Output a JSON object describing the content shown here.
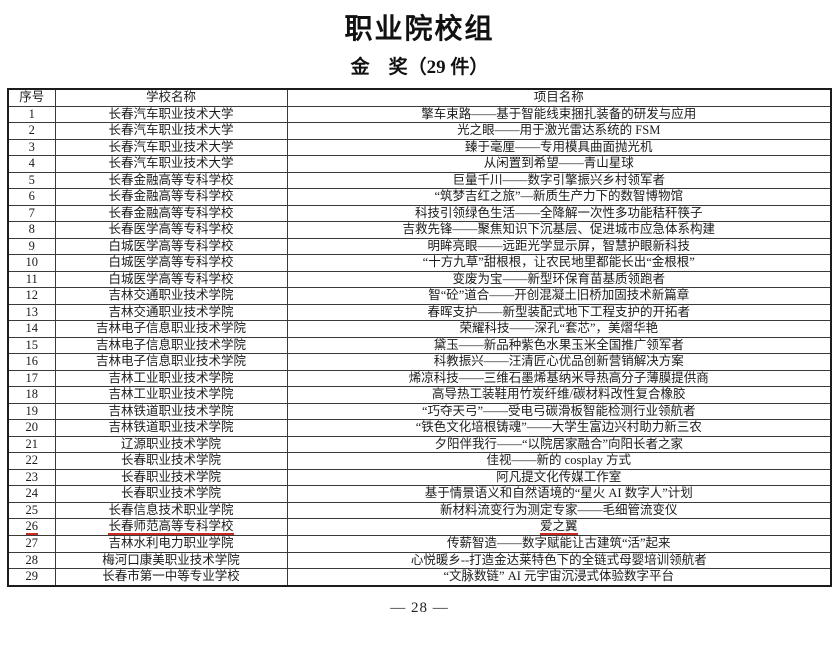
{
  "page": {
    "title": "职业院校组",
    "subtitle": "金　奖（29 件）",
    "page_number": "— 28 —"
  },
  "colors": {
    "annotation_underline": "#cb2a20",
    "text": "#1b1b1b",
    "border": "#3a3a3a"
  },
  "table": {
    "headers": [
      "序号",
      "学校名称",
      "项目名称"
    ],
    "rows": [
      {
        "no": "1",
        "school": "长春汽车职业技术大学",
        "project": "擎车束路——基于智能线束捆扎装备的研发与应用"
      },
      {
        "no": "2",
        "school": "长春汽车职业技术大学",
        "project": "光之眼——用于激光雷达系统的 FSM"
      },
      {
        "no": "3",
        "school": "长春汽车职业技术大学",
        "project": "臻于毫厘——专用模具曲面抛光机"
      },
      {
        "no": "4",
        "school": "长春汽车职业技术大学",
        "project": "从闲置到希望——青山星球"
      },
      {
        "no": "5",
        "school": "长春金融高等专科学校",
        "project": "巨量千川——数字引擎振兴乡村领军者"
      },
      {
        "no": "6",
        "school": "长春金融高等专科学校",
        "project": "“筑梦吉红之旅”—新质生产力下的数智博物馆"
      },
      {
        "no": "7",
        "school": "长春金融高等专科学校",
        "project": "科技引领绿色生活——全降解一次性多功能秸秆筷子"
      },
      {
        "no": "8",
        "school": "长春医学高等专科学校",
        "project": "吉救先锋——聚焦知识下沉基层、促进城市应急体系构建"
      },
      {
        "no": "9",
        "school": "白城医学高等专科学校",
        "project": "明眸亮眼——远距光学显示屏，智慧护眼新科技"
      },
      {
        "no": "10",
        "school": "白城医学高等专科学校",
        "project": "“十方九草”甜根根，让农民地里都能长出“金根根”"
      },
      {
        "no": "11",
        "school": "白城医学高等专科学校",
        "project": "变废为宝——新型环保育苗基质领跑者"
      },
      {
        "no": "12",
        "school": "吉林交通职业技术学院",
        "project": "智“砼”道合——开创混凝土旧桥加固技术新篇章"
      },
      {
        "no": "13",
        "school": "吉林交通职业技术学院",
        "project": "春晖支护——新型装配式地下工程支护的开拓者"
      },
      {
        "no": "14",
        "school": "吉林电子信息职业技术学院",
        "project": "荣耀科技——深孔“套芯”，美熠华艳"
      },
      {
        "no": "15",
        "school": "吉林电子信息职业技术学院",
        "project": "黛玉——新品种紫色水果玉米全国推广领军者"
      },
      {
        "no": "16",
        "school": "吉林电子信息职业技术学院",
        "project": "科教振兴——汪清匠心优品创新营销解决方案"
      },
      {
        "no": "17",
        "school": "吉林工业职业技术学院",
        "project": "烯凉科技——三维石墨烯基纳米导热高分子薄膜提供商"
      },
      {
        "no": "18",
        "school": "吉林工业职业技术学院",
        "project": "高导热工装鞋用竹炭纤维/碳材料改性复合橡胶"
      },
      {
        "no": "19",
        "school": "吉林铁道职业技术学院",
        "project": "“巧夺天弓”——受电弓碳滑板智能检测行业领航者"
      },
      {
        "no": "20",
        "school": "吉林铁道职业技术学院",
        "project": "“铁色文化培根铸魂”——大学生富边兴村助力新三农"
      },
      {
        "no": "21",
        "school": "辽源职业技术学院",
        "project": "夕阳伴我行——“以院居家融合”向阳长者之家"
      },
      {
        "no": "22",
        "school": "长春职业技术学院",
        "project": "佳视——新的 cosplay 方式"
      },
      {
        "no": "23",
        "school": "长春职业技术学院",
        "project": "阿凡提文化传媒工作室"
      },
      {
        "no": "24",
        "school": "长春职业技术学院",
        "project": "基于情景语义和自然语境的“星火 AI 数字人”计划"
      },
      {
        "no": "25",
        "school": "长春信息技术职业学院",
        "project": "新材料流变行为测定专家——毛细管流变仪"
      },
      {
        "no": "26",
        "school": "长春师范高等专科学校",
        "project": "爱之翼",
        "underlined": true
      },
      {
        "no": "27",
        "school": "吉林水利电力职业学院",
        "project": "传薪智造——数字赋能让古建筑“活”起来"
      },
      {
        "no": "28",
        "school": "梅河口康美职业技术学院",
        "project": "心悦暖乡--打造金达莱特色下的全链式母婴培训领航者"
      },
      {
        "no": "29",
        "school": "长春市第一中等专业学校",
        "project": "“文脉数链” AI 元宇宙沉浸式体验数字平台"
      }
    ]
  }
}
